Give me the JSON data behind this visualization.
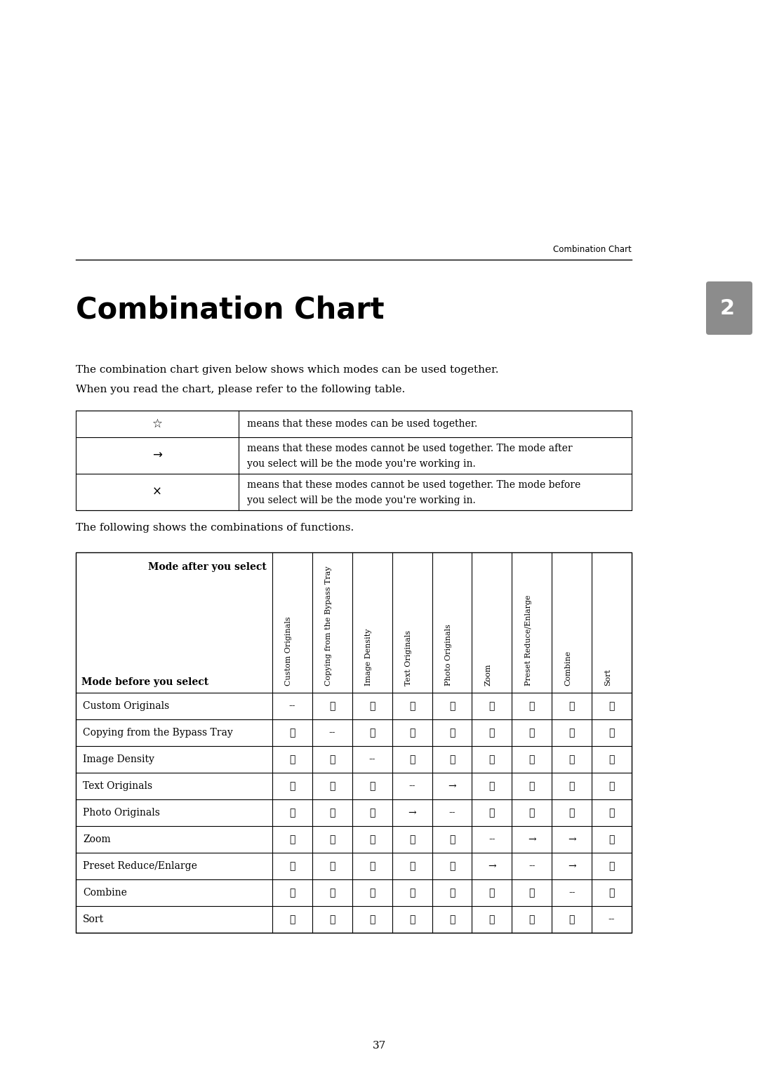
{
  "title": "Combination Chart",
  "page_number": "37",
  "chapter_number": "2",
  "header_text": "Combination Chart",
  "intro_text_line1": "The combination chart given below shows which modes can be used together.",
  "intro_text_line2": "When you read the chart, please refer to the following table.",
  "following_text": "The following shows the combinations of functions.",
  "legend_symbols": [
    "☆",
    "→",
    "×"
  ],
  "legend_meanings": [
    "means that these modes can be used together.",
    "means that these modes cannot be used together. The mode after\nyou select will be the mode you're working in.",
    "means that these modes cannot be used together. The mode before\nyou select will be the mode you're working in."
  ],
  "col_headers": [
    "Custom Originals",
    "Copying from the Bypass Tray",
    "Image Density",
    "Text Originals",
    "Photo Originals",
    "Zoom",
    "Preset Reduce/Enlarge",
    "Combine",
    "Sort"
  ],
  "row_headers": [
    "Custom Originals",
    "Copying from the Bypass Tray",
    "Image Density",
    "Text Originals",
    "Photo Originals",
    "Zoom",
    "Preset Reduce/Enlarge",
    "Combine",
    "Sort"
  ],
  "table_data": [
    [
      "--",
      "☆",
      "☆",
      "☆",
      "☆",
      "☆",
      "☆",
      "☆",
      "☆"
    ],
    [
      "☆",
      "--",
      "☆",
      "☆",
      "☆",
      "☆",
      "☆",
      "☆",
      "☆"
    ],
    [
      "☆",
      "☆",
      "--",
      "☆",
      "☆",
      "☆",
      "☆",
      "☆",
      "☆"
    ],
    [
      "☆",
      "☆",
      "☆",
      "--",
      "→",
      "☆",
      "☆",
      "☆",
      "☆"
    ],
    [
      "☆",
      "☆",
      "☆",
      "→",
      "--",
      "☆",
      "☆",
      "☆",
      "☆"
    ],
    [
      "☆",
      "☆",
      "☆",
      "☆",
      "☆",
      "--",
      "→",
      "→",
      "☆"
    ],
    [
      "☆",
      "☆",
      "☆",
      "☆",
      "☆",
      "→",
      "--",
      "→",
      "☆"
    ],
    [
      "☆",
      "☆",
      "☆",
      "☆",
      "☆",
      "☆",
      "☆",
      "--",
      "☆"
    ],
    [
      "☆",
      "☆",
      "☆",
      "☆",
      "☆",
      "☆",
      "☆",
      "☆",
      "--"
    ]
  ],
  "chapter_tab_color": "#8c8c8c",
  "background_color": "#ffffff"
}
